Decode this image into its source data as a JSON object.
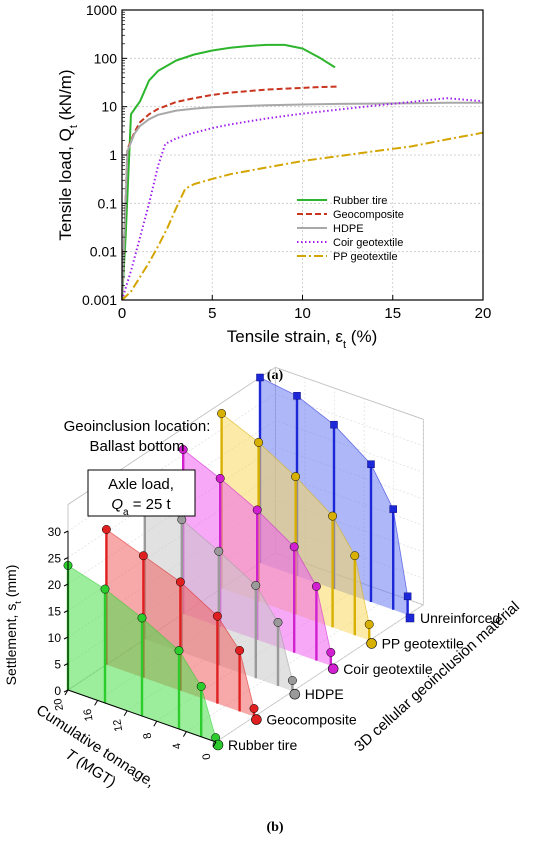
{
  "chart_data": [
    {
      "panel_label": "(a)",
      "type": "line",
      "xlabel": "Tensile strain, ε",
      "xlabel_sub": "t",
      "xlabel_unit": " (%)",
      "ylabel": "Tensile load, Q",
      "ylabel_sub": "t",
      "ylabel_unit": " (kN/m)",
      "xlim": [
        0,
        20
      ],
      "ylim": [
        0.001,
        1000
      ],
      "yscale": "log",
      "x_ticks": [
        "0",
        "5",
        "10",
        "15",
        "20"
      ],
      "x_tick_values": [
        0,
        5,
        10,
        15,
        20
      ],
      "y_ticks": [
        "0.001",
        "0.01",
        "0.1",
        "1",
        "10",
        "100",
        "1000"
      ],
      "y_tick_values": [
        0.001,
        0.01,
        0.1,
        1,
        10,
        100,
        1000
      ],
      "grid": true,
      "legend_position": "bottom-right",
      "series": [
        {
          "name": "Rubber tire",
          "color": "#2db52d",
          "dash": "solid",
          "x": [
            0,
            0.2,
            0.5,
            1,
            1.5,
            2,
            3,
            4,
            5,
            6,
            7,
            8,
            9,
            10,
            11,
            11.8
          ],
          "y": [
            0.001,
            0.02,
            7,
            13,
            35,
            55,
            90,
            120,
            145,
            165,
            180,
            190,
            190,
            160,
            100,
            65
          ]
        },
        {
          "name": "Geocomposite",
          "color": "#c8341e",
          "dash": "dashed",
          "x": [
            0,
            0.3,
            0.7,
            1,
            1.5,
            2,
            3,
            4,
            5,
            6,
            7,
            8,
            9,
            10,
            11,
            12
          ],
          "y": [
            0.001,
            1.3,
            3,
            4.8,
            7,
            9,
            12.5,
            15,
            17.5,
            19.5,
            21,
            22.5,
            23.5,
            24.5,
            25.5,
            26
          ]
        },
        {
          "name": "HDPE",
          "color": "#a8a8a8",
          "dash": "solid",
          "x": [
            0,
            0.3,
            0.7,
            1,
            1.5,
            2,
            3,
            4,
            5,
            6,
            8,
            10,
            12,
            14,
            16,
            18,
            20
          ],
          "y": [
            0.001,
            1.2,
            2.8,
            4,
            5.5,
            6.8,
            8.3,
            9.1,
            9.7,
            10.1,
            10.7,
            11.1,
            11.4,
            11.6,
            11.8,
            12,
            12
          ]
        },
        {
          "name": "Coir geotextile",
          "color": "#a020f0",
          "dash": "dotted",
          "x": [
            0,
            0.5,
            1,
            1.5,
            2,
            2.4,
            3,
            4,
            5,
            6,
            8,
            10,
            12,
            14,
            16,
            18,
            20
          ],
          "y": [
            0.001,
            0.004,
            0.02,
            0.1,
            0.6,
            1.7,
            2.2,
            2.9,
            3.6,
            4.3,
            5.7,
            7.2,
            8.7,
            10.5,
            12.5,
            15,
            13
          ]
        },
        {
          "name": "PP geotextile",
          "color": "#d4a500",
          "dash": "dashdot",
          "x": [
            0,
            0.5,
            1,
            1.5,
            2,
            2.5,
            3,
            3.5,
            4,
            5,
            6,
            8,
            10,
            12,
            14,
            16,
            18,
            20
          ],
          "y": [
            0.001,
            0.0015,
            0.003,
            0.006,
            0.013,
            0.03,
            0.08,
            0.2,
            0.25,
            0.32,
            0.4,
            0.55,
            0.75,
            0.95,
            1.2,
            1.5,
            2.1,
            2.9
          ]
        }
      ]
    },
    {
      "panel_label": "(b)",
      "type": "bar3d",
      "annotation_title": "Geoinclusion location:",
      "annotation_location": "Ballast bottom",
      "annotation_location_color": "#1c3fd4",
      "axle_label_line1": "Axle load,",
      "axle_label_q": "Q",
      "axle_label_sub": "a",
      "axle_label_val": " = 25 t",
      "zlabel": "Settlement, s",
      "zlabel_sub": "t",
      "zlabel_unit": " (mm)",
      "zlim": [
        0,
        30
      ],
      "z_ticks": [
        "0",
        "5",
        "10",
        "15",
        "20",
        "25",
        "30"
      ],
      "z_tick_values": [
        0,
        5,
        10,
        15,
        20,
        25,
        30
      ],
      "xlabel_line1": "Cumulative tonnage,",
      "xlabel_line2_sym": "T",
      "xlabel_line2_unit": " (MGT)",
      "xlim": [
        0,
        20
      ],
      "x_ticks": [
        "0",
        "4",
        "8",
        "12",
        "16",
        "20"
      ],
      "x_tick_values": [
        0,
        4,
        8,
        12,
        16,
        20
      ],
      "ylabel": "3D cellular geoinclusion material",
      "categories": [
        "Rubber tire",
        "Geocomposite",
        "HDPE",
        "Coir geotextile",
        "PP geotextile",
        "Unreinforced"
      ],
      "tonnage": [
        0.05,
        2,
        5,
        10,
        15,
        20
      ],
      "series": [
        {
          "name": "Rubber tire",
          "color": "#2ccc2c",
          "fill": "#4ae04a",
          "values": [
            0.8,
            9.5,
            14.8,
            18.5,
            21.5,
            23.5
          ]
        },
        {
          "name": "Geocomposite",
          "color": "#e02020",
          "fill": "#f06060",
          "values": [
            1.5,
            11.5,
            16.5,
            20.5,
            23,
            25.5
          ]
        },
        {
          "name": "HDPE",
          "color": "#9a9a9a",
          "fill": "#c8c8c8",
          "values": [
            2,
            12,
            17.5,
            21.5,
            25,
            28
          ]
        },
        {
          "name": "Coir geotextile",
          "color": "#d020d0",
          "fill": "#f060f0",
          "values": [
            2.5,
            14,
            20,
            24.5,
            28,
            31
          ]
        },
        {
          "name": "PP geotextile",
          "color": "#d8b000",
          "fill": "#f8d860",
          "values": [
            3,
            15,
            21,
            26,
            30,
            33
          ]
        },
        {
          "name": "Unreinforced",
          "color": "#1c28d8",
          "fill": "#6c7cf0",
          "values": [
            3.5,
            19,
            26,
            31,
            34,
            35
          ]
        }
      ]
    }
  ]
}
